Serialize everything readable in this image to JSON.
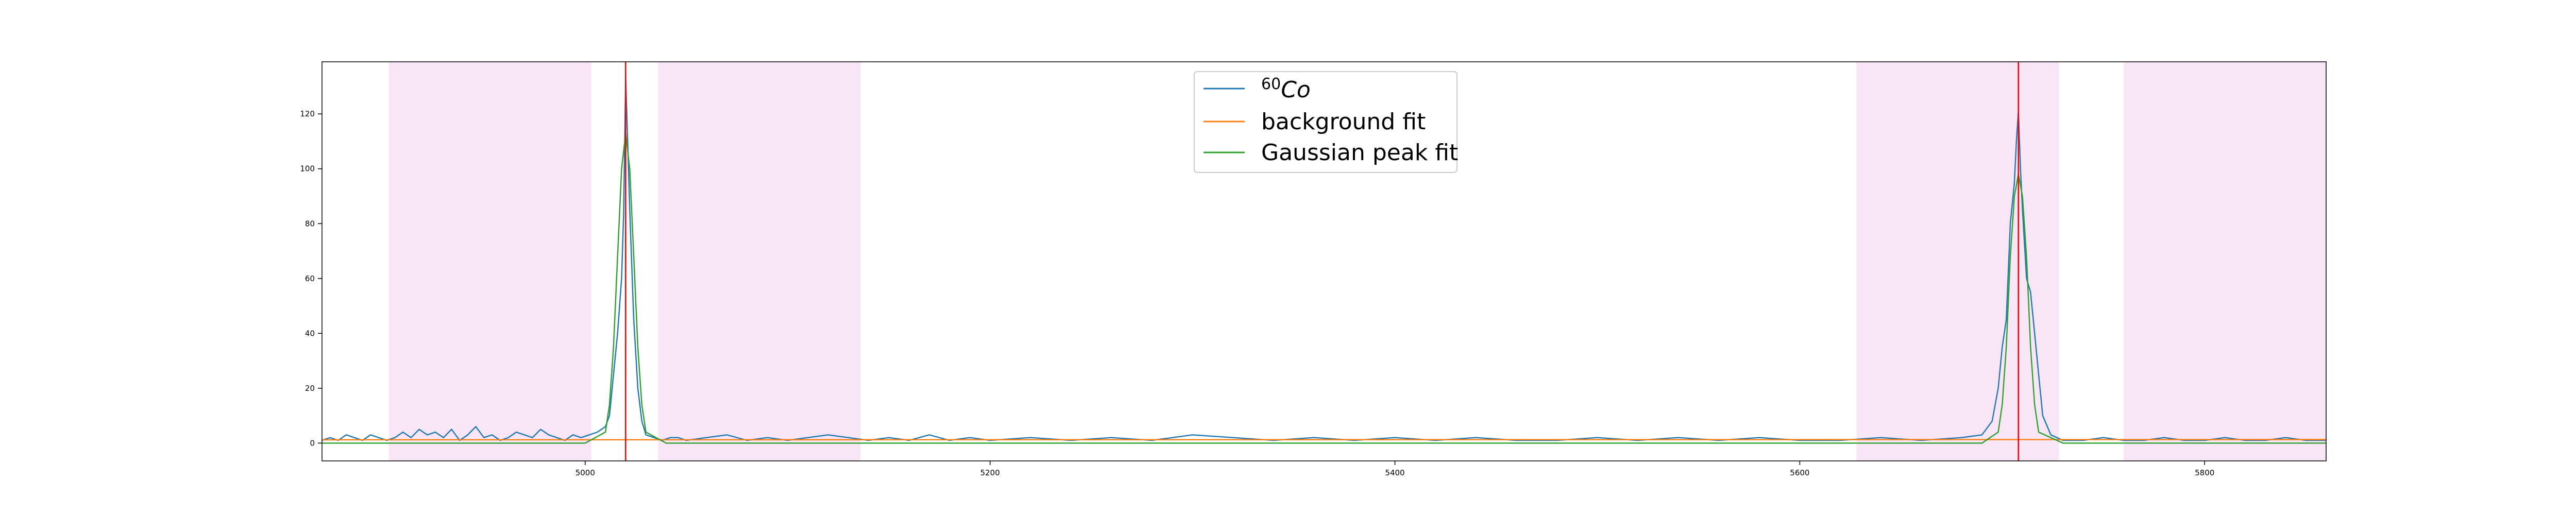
{
  "chart_data": {
    "type": "line",
    "title": "",
    "xlabel": "",
    "ylabel": "",
    "xlim": [
      4870,
      5860
    ],
    "ylim": [
      -6.5,
      139
    ],
    "grid": false,
    "legend_placement": "top-center",
    "x_ticks": [
      5000,
      5200,
      5400,
      5600,
      5800
    ],
    "y_ticks": [
      0,
      20,
      40,
      60,
      80,
      100,
      120
    ],
    "x_tick_labels": [
      "5000",
      "5200",
      "5400",
      "5600",
      "5800"
    ],
    "y_tick_labels": [
      "0",
      "20",
      "40",
      "60",
      "80",
      "100",
      "120"
    ],
    "shaded_regions": [
      {
        "start": 4903,
        "end": 5003
      },
      {
        "start": 5036,
        "end": 5136
      },
      {
        "start": 5628,
        "end": 5728
      },
      {
        "start": 5760,
        "end": 5860
      }
    ],
    "vertical_lines": [
      5020,
      5708
    ],
    "series": [
      {
        "name": "⁶⁰Co",
        "name_base": "Co",
        "name_superscript": "60",
        "color": "#1f77b4",
        "x": [
          4870,
          4874,
          4878,
          4882,
          4886,
          4890,
          4894,
          4898,
          4902,
          4906,
          4910,
          4914,
          4918,
          4922,
          4926,
          4930,
          4934,
          4938,
          4942,
          4946,
          4950,
          4954,
          4958,
          4962,
          4966,
          4970,
          4974,
          4978,
          4982,
          4986,
          4990,
          4994,
          4998,
          5002,
          5006,
          5010,
          5012,
          5014,
          5016,
          5018,
          5019,
          5020,
          5021,
          5022,
          5024,
          5026,
          5028,
          5030,
          5034,
          5038,
          5042,
          5046,
          5050,
          5060,
          5070,
          5080,
          5090,
          5100,
          5110,
          5120,
          5130,
          5140,
          5150,
          5160,
          5170,
          5180,
          5190,
          5200,
          5220,
          5240,
          5260,
          5280,
          5300,
          5320,
          5340,
          5360,
          5380,
          5400,
          5420,
          5440,
          5460,
          5480,
          5500,
          5520,
          5540,
          5560,
          5580,
          5600,
          5620,
          5640,
          5660,
          5680,
          5690,
          5695,
          5698,
          5700,
          5702,
          5704,
          5706,
          5707,
          5708,
          5709,
          5710,
          5712,
          5714,
          5716,
          5718,
          5720,
          5724,
          5730,
          5740,
          5750,
          5760,
          5770,
          5780,
          5790,
          5800,
          5810,
          5820,
          5830,
          5840,
          5850,
          5860
        ],
        "values": [
          1,
          2,
          1,
          3,
          2,
          1,
          3,
          2,
          1,
          2,
          4,
          2,
          5,
          3,
          4,
          2,
          5,
          1,
          3,
          6,
          2,
          3,
          1,
          2,
          4,
          3,
          2,
          5,
          3,
          2,
          1,
          3,
          2,
          3,
          4,
          6,
          10,
          25,
          40,
          60,
          84,
          133,
          110,
          85,
          45,
          20,
          8,
          3,
          2,
          1,
          2,
          2,
          1,
          2,
          3,
          1,
          2,
          1,
          2,
          3,
          2,
          1,
          2,
          1,
          3,
          1,
          2,
          1,
          2,
          1,
          2,
          1,
          3,
          2,
          1,
          2,
          1,
          2,
          1,
          2,
          1,
          1,
          2,
          1,
          2,
          1,
          2,
          1,
          1,
          2,
          1,
          2,
          3,
          8,
          20,
          35,
          45,
          80,
          95,
          110,
          121,
          100,
          85,
          60,
          55,
          40,
          25,
          10,
          3,
          1,
          1,
          2,
          1,
          1,
          2,
          1,
          1,
          2,
          1,
          1,
          2,
          1,
          1
        ]
      },
      {
        "name": "background fit",
        "color": "#ff7f0e",
        "x": [
          4870,
          5860
        ],
        "values": [
          1.2,
          1.3
        ]
      },
      {
        "name": "Gaussian peak fit",
        "color": "#2ca02c",
        "x": [
          4870,
          5000,
          5010,
          5012,
          5014,
          5016,
          5018,
          5020,
          5022,
          5024,
          5026,
          5028,
          5030,
          5040,
          5690,
          5698,
          5700,
          5702,
          5704,
          5706,
          5708,
          5710,
          5712,
          5714,
          5716,
          5718,
          5730,
          5860
        ],
        "values": [
          0,
          0,
          4,
          14,
          35,
          68,
          100,
          113,
          100,
          68,
          35,
          14,
          4,
          0,
          0,
          4,
          14,
          35,
          68,
          90,
          98,
          90,
          68,
          35,
          14,
          4,
          0,
          0
        ]
      }
    ]
  }
}
